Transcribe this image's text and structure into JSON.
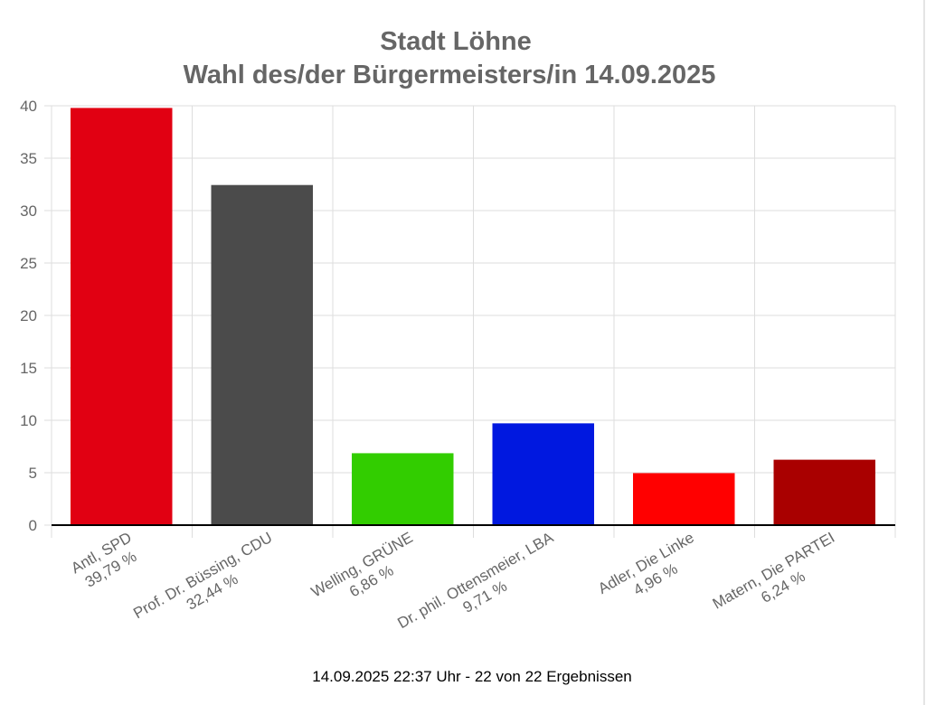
{
  "chart_data": {
    "type": "bar",
    "title": [
      "Stadt Löhne",
      "Wahl des/der Bürgermeisters/in 14.09.2025"
    ],
    "categories": [
      "Antl, SPD",
      "Prof. Dr. Büssing, CDU",
      "Welling, GRÜNE",
      "Dr. phil. Ottensmeier, LBA",
      "Adler, Die Linke",
      "Matern, Die PARTEI"
    ],
    "value_labels": [
      "39,79 %",
      "32,44 %",
      "6,86 %",
      "9,71 %",
      "4,96 %",
      "6,24 %"
    ],
    "values": [
      39.79,
      32.44,
      6.86,
      9.71,
      4.96,
      6.24
    ],
    "colors": [
      "#e10012",
      "#4b4b4b",
      "#32cd00",
      "#0018e0",
      "#ff0000",
      "#a90000"
    ],
    "ylim": [
      0,
      40
    ],
    "yticks": [
      "0",
      "5",
      "10",
      "15",
      "20",
      "25",
      "30",
      "35",
      "40"
    ],
    "grid": true,
    "legend": "none",
    "xlabel": "",
    "ylabel": ""
  },
  "footer": "14.09.2025 22:37 Uhr - 22 von 22 Ergebnissen"
}
